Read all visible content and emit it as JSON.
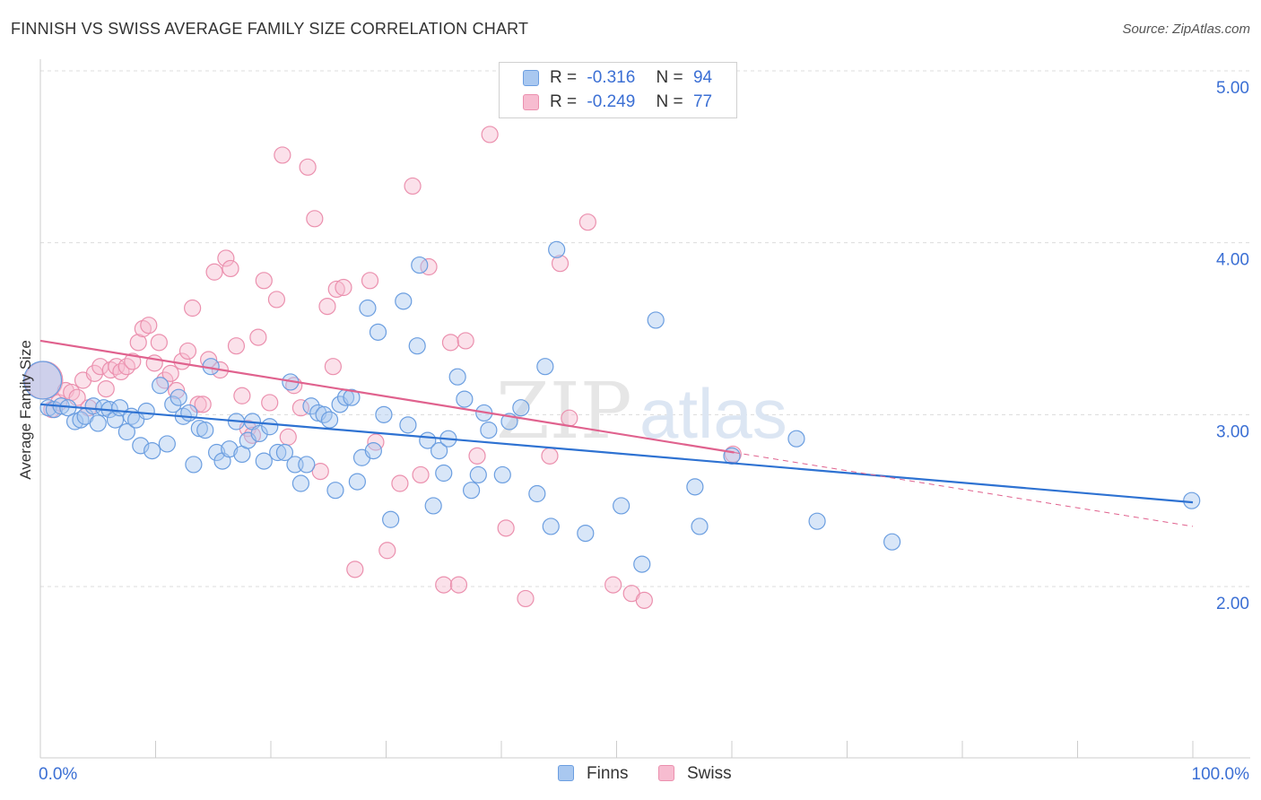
{
  "header": {
    "title": "FINNISH VS SWISS AVERAGE FAMILY SIZE CORRELATION CHART",
    "source": "Source: ZipAtlas.com"
  },
  "watermark": {
    "part1": "ZIP",
    "part2": "atlas"
  },
  "legend": {
    "r_label": "R =",
    "n_label": "N =",
    "finns": {
      "r": "-0.316",
      "n": "94"
    },
    "swiss": {
      "r": "-0.249",
      "n": "77"
    }
  },
  "colors": {
    "finns_fill": "#a9c8f0",
    "finns_stroke": "#6b9ee0",
    "finns_line": "#2e72d2",
    "swiss_fill": "#f7bcd0",
    "swiss_stroke": "#eb90ae",
    "swiss_line": "#e0628e",
    "tick_text": "#3b6fd4",
    "grid": "#dcdcdc"
  },
  "chart_data": {
    "type": "scatter",
    "title": "FINNISH VS SWISS AVERAGE FAMILY SIZE CORRELATION CHART",
    "xlabel": "",
    "ylabel": "Average Family Size",
    "xlim": [
      0,
      100
    ],
    "ylim": [
      1.0,
      5.1
    ],
    "x_tick_labels": [
      "0.0%",
      "100.0%"
    ],
    "y_ticks": [
      2.0,
      3.0,
      4.0,
      5.0
    ],
    "y_tick_labels": [
      "2.00",
      "3.00",
      "4.00",
      "5.00"
    ],
    "legend_position": "top-center",
    "series": [
      {
        "name": "Finns",
        "r": -0.316,
        "n": 94,
        "trend": {
          "x": [
            0,
            100
          ],
          "y": [
            3.06,
            2.49
          ]
        },
        "points": [
          [
            0.2,
            3.2
          ],
          [
            0.7,
            3.04
          ],
          [
            1.2,
            3.03
          ],
          [
            1.8,
            3.05
          ],
          [
            2.4,
            3.04
          ],
          [
            3.0,
            2.96
          ],
          [
            3.5,
            2.97
          ],
          [
            3.9,
            2.99
          ],
          [
            4.6,
            3.05
          ],
          [
            5.0,
            2.95
          ],
          [
            5.5,
            3.04
          ],
          [
            6.0,
            3.03
          ],
          [
            6.5,
            2.97
          ],
          [
            6.9,
            3.04
          ],
          [
            7.5,
            2.9
          ],
          [
            7.9,
            2.99
          ],
          [
            8.3,
            2.97
          ],
          [
            8.7,
            2.82
          ],
          [
            9.2,
            3.02
          ],
          [
            9.7,
            2.79
          ],
          [
            10.4,
            3.17
          ],
          [
            11.0,
            2.83
          ],
          [
            11.5,
            3.06
          ],
          [
            12.0,
            3.1
          ],
          [
            12.4,
            2.99
          ],
          [
            12.9,
            3.01
          ],
          [
            13.3,
            2.71
          ],
          [
            13.8,
            2.92
          ],
          [
            14.3,
            2.91
          ],
          [
            14.8,
            3.28
          ],
          [
            15.3,
            2.78
          ],
          [
            15.8,
            2.73
          ],
          [
            16.4,
            2.8
          ],
          [
            17.0,
            2.96
          ],
          [
            17.5,
            2.77
          ],
          [
            18.0,
            2.85
          ],
          [
            18.4,
            2.96
          ],
          [
            19.0,
            2.89
          ],
          [
            19.4,
            2.73
          ],
          [
            19.9,
            2.93
          ],
          [
            20.6,
            2.78
          ],
          [
            21.2,
            2.78
          ],
          [
            21.7,
            3.19
          ],
          [
            22.1,
            2.71
          ],
          [
            22.6,
            2.6
          ],
          [
            23.1,
            2.71
          ],
          [
            23.5,
            3.05
          ],
          [
            24.1,
            3.01
          ],
          [
            24.6,
            3.0
          ],
          [
            25.1,
            2.97
          ],
          [
            25.6,
            2.56
          ],
          [
            26.0,
            3.06
          ],
          [
            26.5,
            3.1
          ],
          [
            27.0,
            3.1
          ],
          [
            27.5,
            2.61
          ],
          [
            27.9,
            2.75
          ],
          [
            28.4,
            3.62
          ],
          [
            28.9,
            2.79
          ],
          [
            29.3,
            3.48
          ],
          [
            29.8,
            3.0
          ],
          [
            30.4,
            2.39
          ],
          [
            31.5,
            3.66
          ],
          [
            31.9,
            2.94
          ],
          [
            32.7,
            3.4
          ],
          [
            32.9,
            3.87
          ],
          [
            33.6,
            2.85
          ],
          [
            34.1,
            2.47
          ],
          [
            34.6,
            2.79
          ],
          [
            35.0,
            2.66
          ],
          [
            35.4,
            2.86
          ],
          [
            36.2,
            3.22
          ],
          [
            36.8,
            3.09
          ],
          [
            37.4,
            2.56
          ],
          [
            38.0,
            2.65
          ],
          [
            38.5,
            3.01
          ],
          [
            38.9,
            2.91
          ],
          [
            40.1,
            2.65
          ],
          [
            40.7,
            2.96
          ],
          [
            41.7,
            3.04
          ],
          [
            43.1,
            2.54
          ],
          [
            43.8,
            3.28
          ],
          [
            44.3,
            2.35
          ],
          [
            44.8,
            3.96
          ],
          [
            47.3,
            2.31
          ],
          [
            50.4,
            2.47
          ],
          [
            52.2,
            2.13
          ],
          [
            53.4,
            3.55
          ],
          [
            56.8,
            2.58
          ],
          [
            57.2,
            2.35
          ],
          [
            60.0,
            2.76
          ],
          [
            65.6,
            2.86
          ],
          [
            67.4,
            2.38
          ],
          [
            73.9,
            2.26
          ],
          [
            99.9,
            2.5
          ]
        ]
      },
      {
        "name": "Swiss",
        "r": -0.249,
        "n": 77,
        "trend": {
          "x": [
            0,
            60.2
          ],
          "y": [
            3.43,
            2.78
          ]
        },
        "trend_extension": {
          "x": [
            60.2,
            100
          ],
          "y": [
            2.78,
            2.35
          ]
        },
        "points": [
          [
            0.3,
            3.2
          ],
          [
            1.0,
            3.03
          ],
          [
            1.6,
            3.07
          ],
          [
            2.2,
            3.14
          ],
          [
            2.7,
            3.13
          ],
          [
            3.2,
            3.1
          ],
          [
            3.7,
            3.2
          ],
          [
            4.2,
            3.04
          ],
          [
            4.7,
            3.24
          ],
          [
            5.2,
            3.28
          ],
          [
            5.7,
            3.15
          ],
          [
            6.1,
            3.26
          ],
          [
            6.6,
            3.28
          ],
          [
            7.0,
            3.25
          ],
          [
            7.5,
            3.28
          ],
          [
            8.0,
            3.31
          ],
          [
            8.5,
            3.42
          ],
          [
            8.9,
            3.5
          ],
          [
            9.4,
            3.52
          ],
          [
            9.9,
            3.3
          ],
          [
            10.3,
            3.42
          ],
          [
            10.8,
            3.2
          ],
          [
            11.3,
            3.24
          ],
          [
            11.8,
            3.14
          ],
          [
            12.3,
            3.31
          ],
          [
            12.8,
            3.37
          ],
          [
            13.2,
            3.62
          ],
          [
            13.7,
            3.06
          ],
          [
            14.1,
            3.06
          ],
          [
            14.6,
            3.32
          ],
          [
            15.1,
            3.83
          ],
          [
            15.6,
            3.26
          ],
          [
            16.1,
            3.91
          ],
          [
            16.5,
            3.85
          ],
          [
            17.0,
            3.4
          ],
          [
            17.5,
            3.11
          ],
          [
            18.0,
            2.92
          ],
          [
            18.4,
            2.88
          ],
          [
            18.9,
            3.45
          ],
          [
            19.4,
            3.78
          ],
          [
            19.9,
            3.07
          ],
          [
            20.5,
            3.67
          ],
          [
            21.0,
            4.51
          ],
          [
            21.5,
            2.87
          ],
          [
            22.0,
            3.17
          ],
          [
            22.6,
            3.04
          ],
          [
            23.2,
            4.44
          ],
          [
            23.8,
            4.14
          ],
          [
            24.3,
            2.67
          ],
          [
            24.9,
            3.63
          ],
          [
            25.4,
            3.28
          ],
          [
            25.7,
            3.73
          ],
          [
            26.3,
            3.74
          ],
          [
            27.3,
            2.1
          ],
          [
            28.6,
            3.78
          ],
          [
            29.1,
            2.84
          ],
          [
            30.1,
            2.21
          ],
          [
            31.2,
            2.6
          ],
          [
            32.3,
            4.33
          ],
          [
            33.0,
            2.65
          ],
          [
            33.7,
            3.86
          ],
          [
            35.0,
            2.01
          ],
          [
            35.6,
            3.42
          ],
          [
            36.3,
            2.01
          ],
          [
            36.9,
            3.43
          ],
          [
            37.9,
            2.76
          ],
          [
            39.0,
            4.63
          ],
          [
            40.4,
            2.34
          ],
          [
            42.1,
            1.93
          ],
          [
            44.2,
            2.76
          ],
          [
            45.1,
            3.88
          ],
          [
            45.9,
            2.98
          ],
          [
            47.5,
            4.12
          ],
          [
            49.7,
            2.01
          ],
          [
            51.3,
            1.96
          ],
          [
            52.4,
            1.92
          ],
          [
            60.1,
            2.77
          ]
        ]
      }
    ]
  },
  "bottom_legend": {
    "finns": "Finns",
    "swiss": "Swiss"
  }
}
